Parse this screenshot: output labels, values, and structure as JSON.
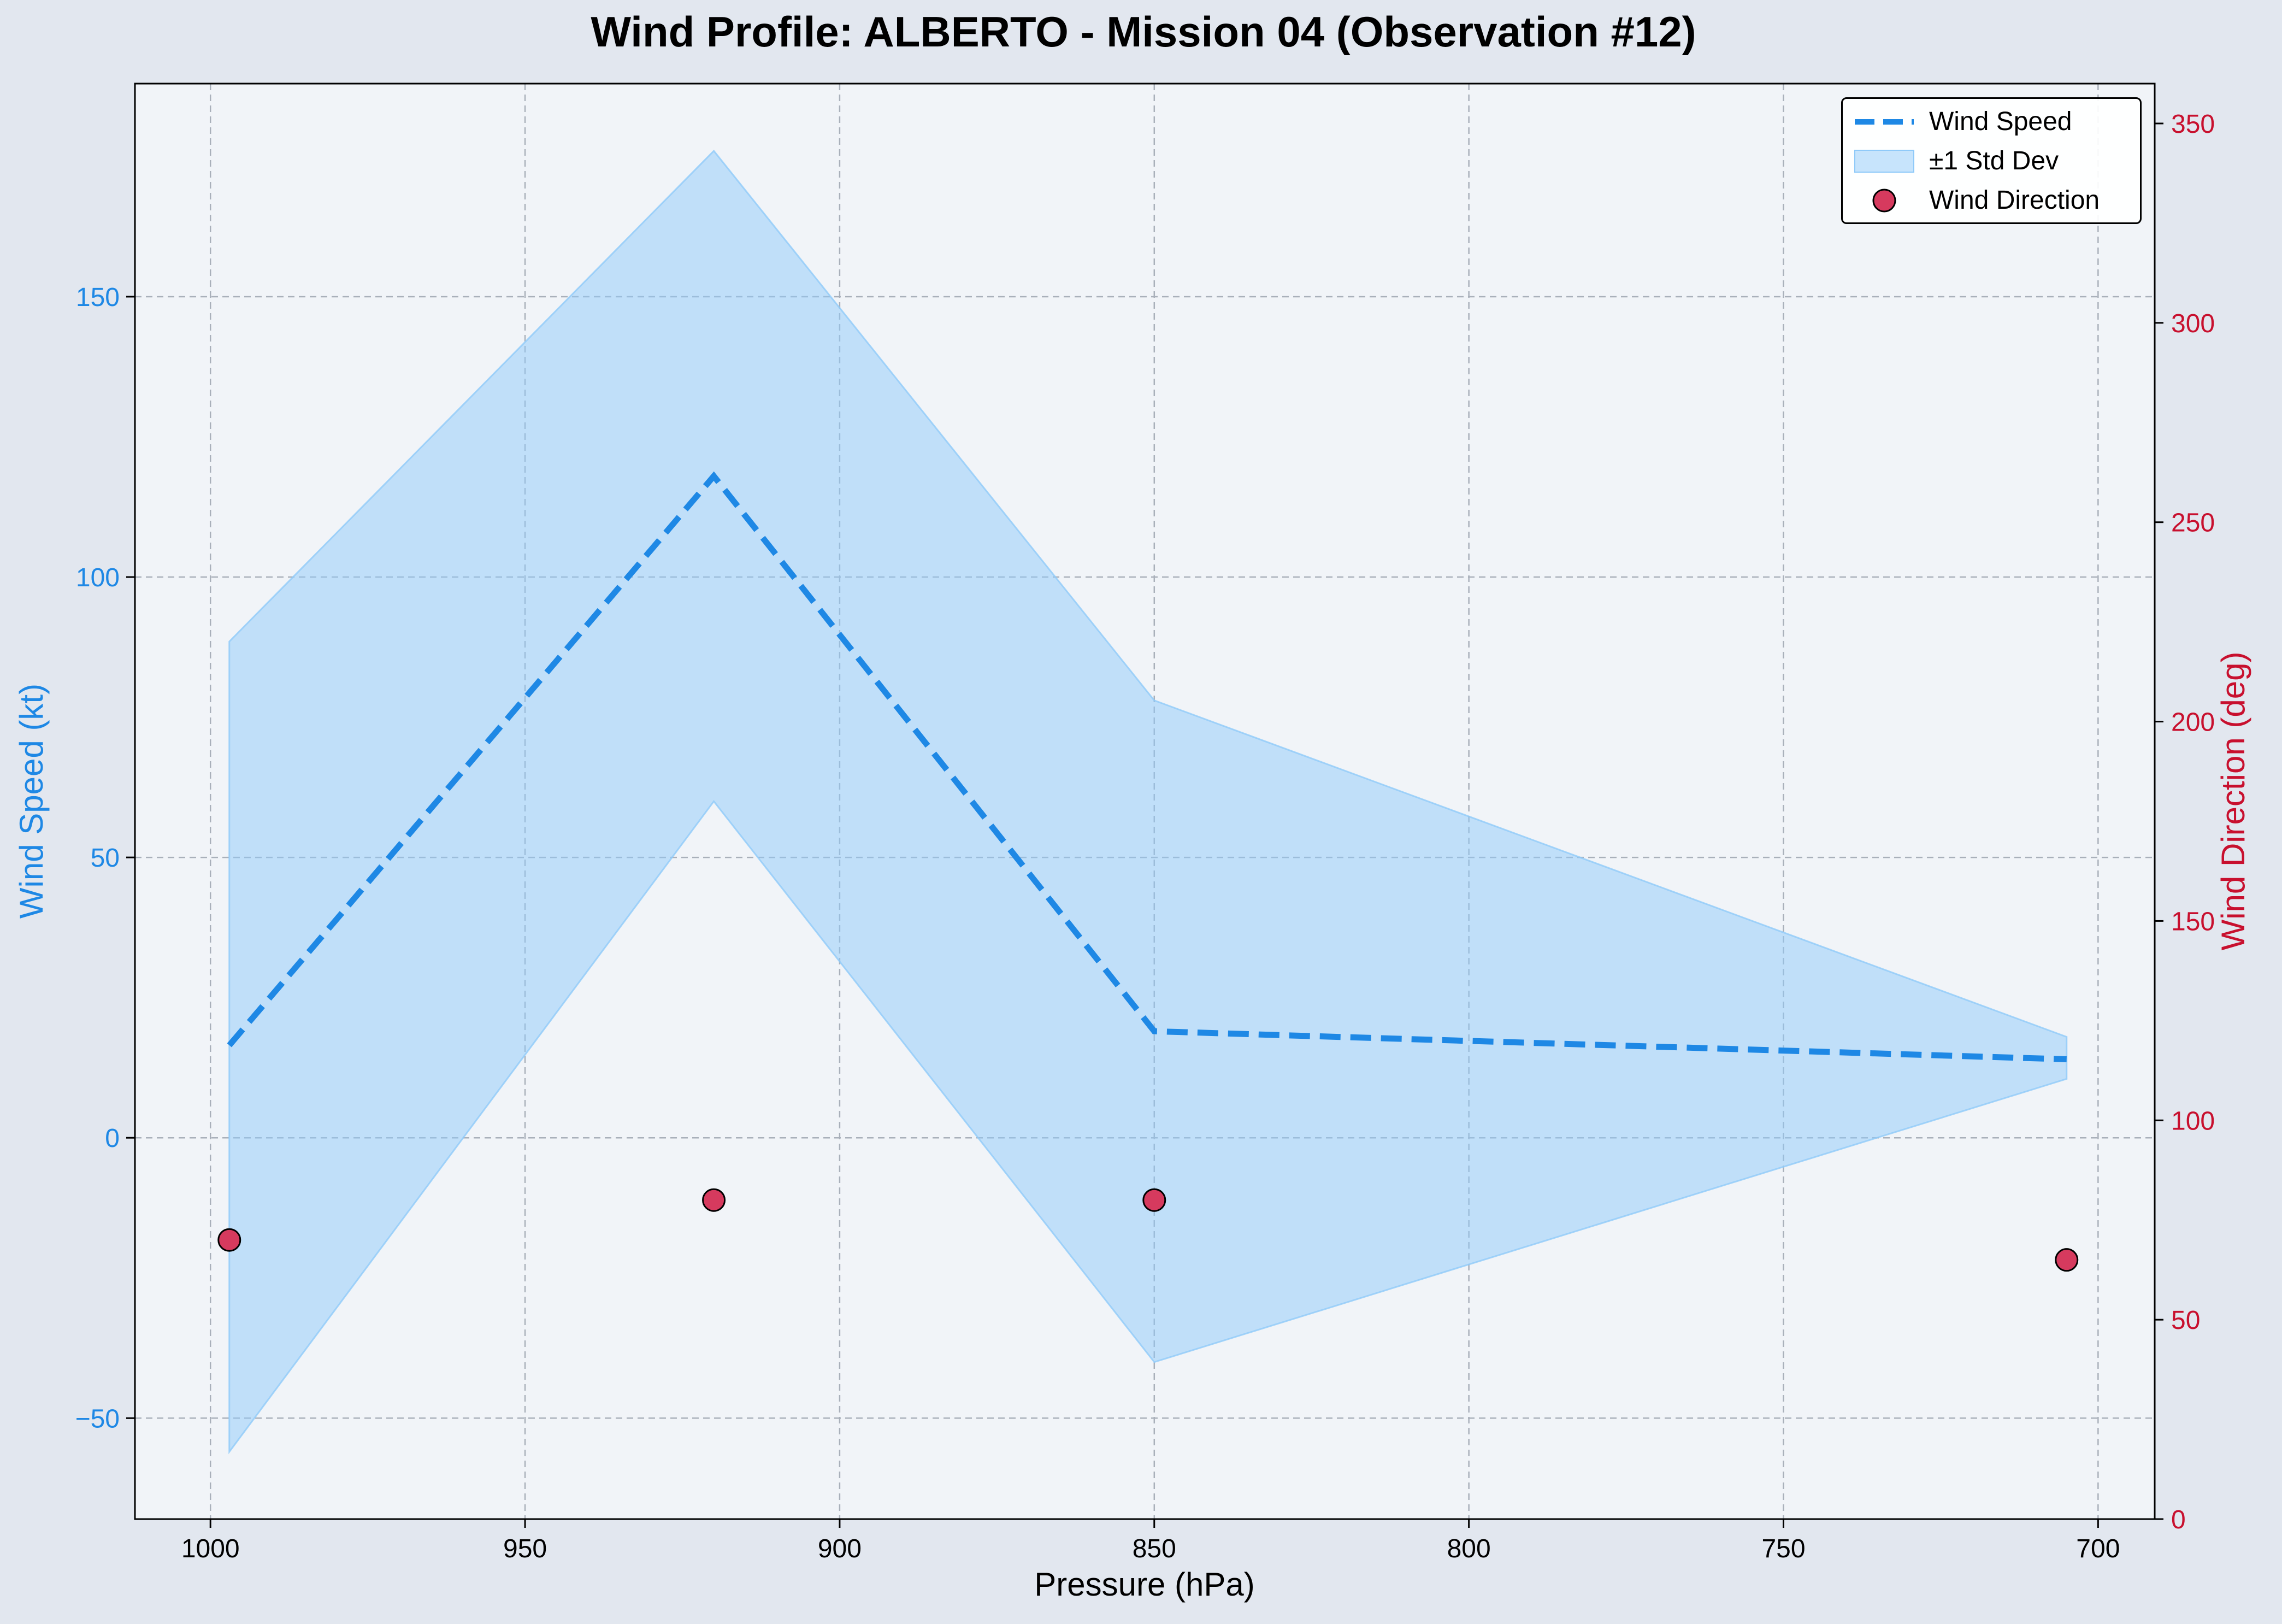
{
  "chart_data": {
    "type": "line",
    "title": "Wind Profile: ALBERTO - Mission 04 (Observation #12)",
    "xlabel": "Pressure (hPa)",
    "ylabel": "Wind Speed (kt)",
    "y2label": "Wind Direction (deg)",
    "xlim": [
      1012,
      691
    ],
    "ylim": [
      -68,
      188
    ],
    "y2lim": [
      0,
      360
    ],
    "x_ticks": [
      1000,
      950,
      900,
      850,
      800,
      750,
      700
    ],
    "y_ticks": [
      -50,
      0,
      50,
      100,
      150
    ],
    "y2_ticks": [
      0,
      50,
      100,
      150,
      200,
      250,
      300,
      350
    ],
    "grid": true,
    "legend": "top-right",
    "x": [
      997,
      920,
      850,
      705
    ],
    "series": [
      {
        "name": "Wind Speed",
        "kind": "line",
        "style": "dashed",
        "axis": "left",
        "color": "#1e88e5",
        "values": [
          16.5,
          118,
          19,
          14
        ]
      },
      {
        "name": "±1 Std Dev",
        "kind": "band",
        "axis": "left",
        "color": "#90caf9",
        "lower": [
          -56,
          60,
          -40,
          10.5
        ],
        "upper": [
          88.5,
          176,
          78,
          18
        ]
      },
      {
        "name": "Wind Direction",
        "kind": "scatter",
        "axis": "right",
        "color": "#d63a5e",
        "values": [
          70,
          80,
          80,
          65
        ]
      }
    ]
  },
  "colors": {
    "speed_axis": "#1e88e5",
    "direction_axis": "#c8102e",
    "plot_background": "#f1f4f8",
    "page_background": "#e2e7ef"
  }
}
